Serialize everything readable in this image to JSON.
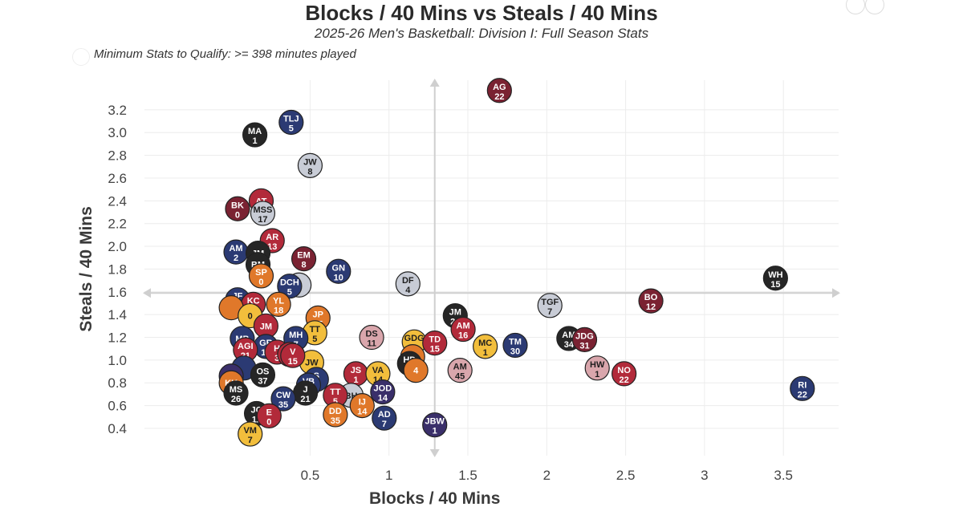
{
  "title": "Blocks / 40 Mins vs Steals / 40 Mins",
  "subtitle": "2025-26 Men's Basketball: Division I: Full Season Stats",
  "qualify_text": "Minimum Stats to Qualify: >= 398 minutes played",
  "colors": {
    "maroon": "#7a2232",
    "navy": "#2b3a73",
    "dark": "#262626",
    "red": "#b22a3a",
    "silver": "#c8ccd6",
    "orange": "#e0782a",
    "gold": "#f2be3c",
    "pink": "#d9a6ac",
    "purple": "#3a2f6a"
  },
  "chart_data": {
    "type": "scatter",
    "title": "Blocks / 40 Mins vs Steals / 40 Mins",
    "subtitle": "2025-26 Men's Basketball: Division I: Full Season Stats",
    "xlabel": "Blocks / 40 Mins",
    "ylabel": "Steals / 40 Mins",
    "xlim": [
      -0.55,
      3.85
    ],
    "ylim": [
      0.16,
      3.46
    ],
    "xticks": [
      "0.5",
      "1",
      "1.5",
      "2",
      "2.5",
      "3",
      "3.5"
    ],
    "yticks": [
      "0.4",
      "0.6",
      "0.8",
      "1.0",
      "1.2",
      "1.4",
      "1.6",
      "1.8",
      "2.0",
      "2.2",
      "2.4",
      "2.6",
      "2.8",
      "3.0",
      "3.2"
    ],
    "reference_lines": {
      "x": 1.29,
      "y": 1.59
    },
    "grid": true,
    "points": [
      {
        "x": 1.7,
        "y": 3.37,
        "label": "AG",
        "num": "22",
        "color": "maroon"
      },
      {
        "x": 0.38,
        "y": 3.09,
        "label": "TLJ",
        "num": "5",
        "color": "navy"
      },
      {
        "x": 0.15,
        "y": 2.98,
        "label": "MA",
        "num": "1",
        "color": "dark"
      },
      {
        "x": 0.5,
        "y": 2.71,
        "label": "JW",
        "num": "8",
        "color": "silver"
      },
      {
        "x": 0.19,
        "y": 2.4,
        "label": "AT",
        "num": "",
        "color": "red"
      },
      {
        "x": 0.04,
        "y": 2.33,
        "label": "BK",
        "num": "0",
        "color": "maroon"
      },
      {
        "x": 0.2,
        "y": 2.29,
        "label": "MSS",
        "num": "17",
        "color": "silver"
      },
      {
        "x": 0.26,
        "y": 2.05,
        "label": "AR",
        "num": "13",
        "color": "red"
      },
      {
        "x": 0.03,
        "y": 1.95,
        "label": "AM",
        "num": "2",
        "color": "navy"
      },
      {
        "x": 0.17,
        "y": 1.94,
        "label": "JM",
        "num": "",
        "color": "dark"
      },
      {
        "x": 0.46,
        "y": 1.89,
        "label": "EM",
        "num": "8",
        "color": "maroon"
      },
      {
        "x": 0.17,
        "y": 1.84,
        "label": "BM",
        "num": "",
        "color": "dark"
      },
      {
        "x": 0.68,
        "y": 1.78,
        "label": "GN",
        "num": "10",
        "color": "navy"
      },
      {
        "x": 0.19,
        "y": 1.74,
        "label": "SP",
        "num": "0",
        "color": "orange"
      },
      {
        "x": 1.12,
        "y": 1.67,
        "label": "DF",
        "num": "4",
        "color": "silver"
      },
      {
        "x": 0.43,
        "y": 1.66,
        "label": "",
        "num": "",
        "color": "silver"
      },
      {
        "x": 0.37,
        "y": 1.65,
        "label": "DCH",
        "num": "5",
        "color": "navy"
      },
      {
        "x": 3.45,
        "y": 1.72,
        "label": "WH",
        "num": "15",
        "color": "dark"
      },
      {
        "x": 2.66,
        "y": 1.52,
        "label": "BO",
        "num": "12",
        "color": "maroon"
      },
      {
        "x": 2.02,
        "y": 1.48,
        "label": "TGF",
        "num": "7",
        "color": "silver"
      },
      {
        "x": 0.04,
        "y": 1.53,
        "label": "JF",
        "num": "23",
        "color": "navy"
      },
      {
        "x": 0.14,
        "y": 1.49,
        "label": "KC",
        "num": "7",
        "color": "red"
      },
      {
        "x": 0.0,
        "y": 1.46,
        "label": "",
        "num": "",
        "color": "orange"
      },
      {
        "x": 0.3,
        "y": 1.49,
        "label": "YL",
        "num": "18",
        "color": "orange"
      },
      {
        "x": 1.42,
        "y": 1.39,
        "label": "JM",
        "num": "24",
        "color": "dark"
      },
      {
        "x": 0.55,
        "y": 1.37,
        "label": "JP",
        "num": "15",
        "color": "orange"
      },
      {
        "x": 0.12,
        "y": 1.39,
        "label": "",
        "num": "0",
        "color": "gold"
      },
      {
        "x": 0.22,
        "y": 1.3,
        "label": "JM",
        "num": "",
        "color": "red"
      },
      {
        "x": 1.47,
        "y": 1.27,
        "label": "AM",
        "num": "16",
        "color": "red"
      },
      {
        "x": 0.53,
        "y": 1.24,
        "label": "TT",
        "num": "5",
        "color": "gold"
      },
      {
        "x": 0.89,
        "y": 1.2,
        "label": "DS",
        "num": "11",
        "color": "pink"
      },
      {
        "x": 0.07,
        "y": 1.19,
        "label": "MB",
        "num": "",
        "color": "navy"
      },
      {
        "x": 0.41,
        "y": 1.19,
        "label": "MH",
        "num": "7",
        "color": "navy"
      },
      {
        "x": 1.16,
        "y": 1.16,
        "label": "GDG",
        "num": "5",
        "color": "gold"
      },
      {
        "x": 1.29,
        "y": 1.15,
        "label": "TD",
        "num": "15",
        "color": "red"
      },
      {
        "x": 1.61,
        "y": 1.12,
        "label": "MC",
        "num": "1",
        "color": "gold"
      },
      {
        "x": 1.8,
        "y": 1.13,
        "label": "TM",
        "num": "30",
        "color": "navy"
      },
      {
        "x": 2.14,
        "y": 1.19,
        "label": "AM",
        "num": "34",
        "color": "dark"
      },
      {
        "x": 2.24,
        "y": 1.18,
        "label": "JDG",
        "num": "31",
        "color": "maroon"
      },
      {
        "x": 0.22,
        "y": 1.12,
        "label": "GR",
        "num": "12",
        "color": "navy"
      },
      {
        "x": 0.09,
        "y": 1.09,
        "label": "AGI",
        "num": "21",
        "color": "red"
      },
      {
        "x": 0.29,
        "y": 1.07,
        "label": "H",
        "num": "3",
        "color": "red"
      },
      {
        "x": 0.37,
        "y": 1.05,
        "label": "",
        "num": "",
        "color": "red"
      },
      {
        "x": 0.51,
        "y": 0.98,
        "label": "JW",
        "num": "",
        "color": "gold"
      },
      {
        "x": 0.39,
        "y": 1.04,
        "label": "V",
        "num": "15",
        "color": "red"
      },
      {
        "x": 1.15,
        "y": 1.03,
        "label": "FR",
        "num": "",
        "color": "orange"
      },
      {
        "x": 1.13,
        "y": 0.97,
        "label": "HD",
        "num": "6",
        "color": "dark"
      },
      {
        "x": 1.17,
        "y": 0.91,
        "label": "",
        "num": "4",
        "color": "orange"
      },
      {
        "x": 0.08,
        "y": 0.93,
        "label": "",
        "num": "",
        "color": "navy"
      },
      {
        "x": 0.2,
        "y": 0.87,
        "label": "OS",
        "num": "37",
        "color": "dark"
      },
      {
        "x": 1.45,
        "y": 0.91,
        "label": "AM",
        "num": "45",
        "color": "pink"
      },
      {
        "x": 0.79,
        "y": 0.88,
        "label": "JS",
        "num": "1",
        "color": "red"
      },
      {
        "x": 0.93,
        "y": 0.88,
        "label": "VA",
        "num": "14",
        "color": "gold"
      },
      {
        "x": 0.54,
        "y": 0.83,
        "label": "S",
        "num": "3",
        "color": "navy"
      },
      {
        "x": 2.32,
        "y": 0.93,
        "label": "HW",
        "num": "1",
        "color": "pink"
      },
      {
        "x": 2.49,
        "y": 0.88,
        "label": "NO",
        "num": "22",
        "color": "red"
      },
      {
        "x": 3.62,
        "y": 0.75,
        "label": "RI",
        "num": "22",
        "color": "navy"
      },
      {
        "x": 0.0,
        "y": 0.86,
        "label": "RJ",
        "num": "",
        "color": "purple"
      },
      {
        "x": 0.0,
        "y": 0.8,
        "label": "KK",
        "num": "",
        "color": "orange"
      },
      {
        "x": 0.49,
        "y": 0.78,
        "label": "VB",
        "num": "34",
        "color": "navy"
      },
      {
        "x": 0.03,
        "y": 0.71,
        "label": "MS",
        "num": "26",
        "color": "dark"
      },
      {
        "x": 0.76,
        "y": 0.69,
        "label": "BH",
        "num": "",
        "color": "silver"
      },
      {
        "x": 0.66,
        "y": 0.69,
        "label": "TT",
        "num": "5",
        "color": "red"
      },
      {
        "x": 0.96,
        "y": 0.72,
        "label": "JOD",
        "num": "14",
        "color": "purple"
      },
      {
        "x": 0.47,
        "y": 0.71,
        "label": "J",
        "num": "21",
        "color": "dark"
      },
      {
        "x": 0.33,
        "y": 0.66,
        "label": "CW",
        "num": "35",
        "color": "navy"
      },
      {
        "x": 0.83,
        "y": 0.6,
        "label": "IJ",
        "num": "14",
        "color": "orange"
      },
      {
        "x": 0.16,
        "y": 0.53,
        "label": "JC",
        "num": "11",
        "color": "dark"
      },
      {
        "x": 0.24,
        "y": 0.51,
        "label": "E",
        "num": "0",
        "color": "red"
      },
      {
        "x": 0.66,
        "y": 0.52,
        "label": "DD",
        "num": "35",
        "color": "orange"
      },
      {
        "x": 0.97,
        "y": 0.49,
        "label": "AD",
        "num": "7",
        "color": "navy"
      },
      {
        "x": 1.29,
        "y": 0.43,
        "label": "JBW",
        "num": "1",
        "color": "purple"
      },
      {
        "x": 0.12,
        "y": 0.35,
        "label": "VM",
        "num": "7",
        "color": "gold"
      }
    ]
  }
}
